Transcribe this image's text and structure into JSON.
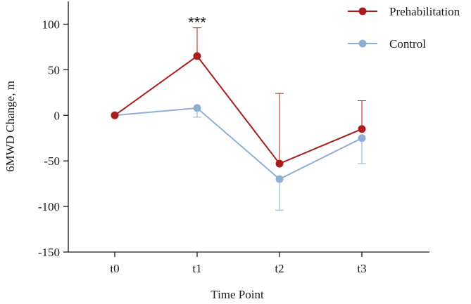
{
  "chart_data": {
    "type": "line",
    "title": "",
    "xlabel": "Time Point",
    "ylabel": "6MWD Change, m",
    "categories": [
      "t0",
      "t1",
      "t2",
      "t3"
    ],
    "ylim": [
      -150,
      125
    ],
    "yticks": [
      100,
      50,
      0,
      -50,
      -100,
      -150
    ],
    "ytick_labels": [
      "100",
      "50",
      "0",
      "-50",
      "-100",
      "-150"
    ],
    "grid": false,
    "legend_position": "top-right",
    "series": [
      {
        "name": "Prehabilitation",
        "color": "#a91d1d",
        "values": [
          0,
          65,
          -53,
          -15
        ],
        "error_upper": [
          0,
          31,
          77,
          31
        ],
        "error_lower": [
          0,
          0,
          0,
          0
        ]
      },
      {
        "name": "Control",
        "color": "#8eaed4",
        "values": [
          0,
          8,
          -70,
          -25
        ],
        "error_upper": [
          0,
          0,
          0,
          0
        ],
        "error_lower": [
          0,
          10,
          34,
          28
        ]
      }
    ],
    "annotations": [
      {
        "text": "***",
        "category": "t1",
        "y": 107
      }
    ]
  }
}
